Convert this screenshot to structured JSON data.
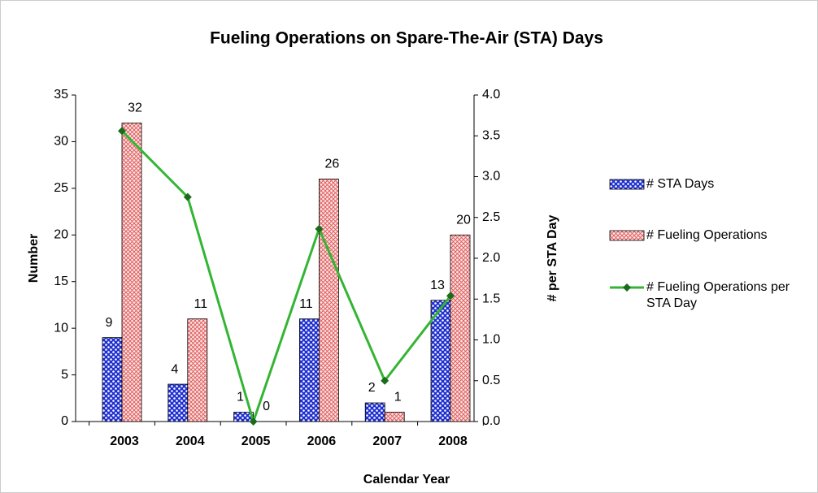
{
  "chart_data": {
    "type": "bar",
    "title": "Fueling Operations on Spare-The-Air (STA) Days",
    "x_label": "Calendar Year",
    "y_label": "Number",
    "y2_label": "# per STA Day",
    "categories": [
      "2003",
      "2004",
      "2005",
      "2006",
      "2007",
      "2008"
    ],
    "series": [
      {
        "name": "# STA Days",
        "type": "bar",
        "color": "#1f2fd0",
        "values": [
          9,
          4,
          1,
          11,
          2,
          13
        ]
      },
      {
        "name": "# Fueling Operations",
        "type": "bar",
        "color": "#e06060",
        "values": [
          32,
          11,
          0,
          26,
          1,
          20
        ]
      },
      {
        "name": "# Fueling Operations per STA Day",
        "type": "line",
        "axis": "y2",
        "color": "#33b533",
        "marker_color": "#1a6b1a",
        "values": [
          3.56,
          2.75,
          0,
          2.36,
          0.5,
          1.54
        ]
      }
    ],
    "ylim": [
      0,
      35
    ],
    "yticks": [
      0,
      5,
      10,
      15,
      20,
      25,
      30,
      35
    ],
    "y2lim": [
      0,
      4
    ],
    "y2ticks": [
      {
        "value": 0,
        "label": "0.0"
      },
      0.5,
      {
        "value": 1,
        "label": "1.0"
      },
      1.5,
      {
        "value": 2,
        "label": "2.0"
      },
      2.5,
      {
        "value": 3,
        "label": "3.0"
      },
      3.5,
      {
        "value": 4,
        "label": "4.0"
      }
    ],
    "grid": false,
    "legend": "right"
  }
}
